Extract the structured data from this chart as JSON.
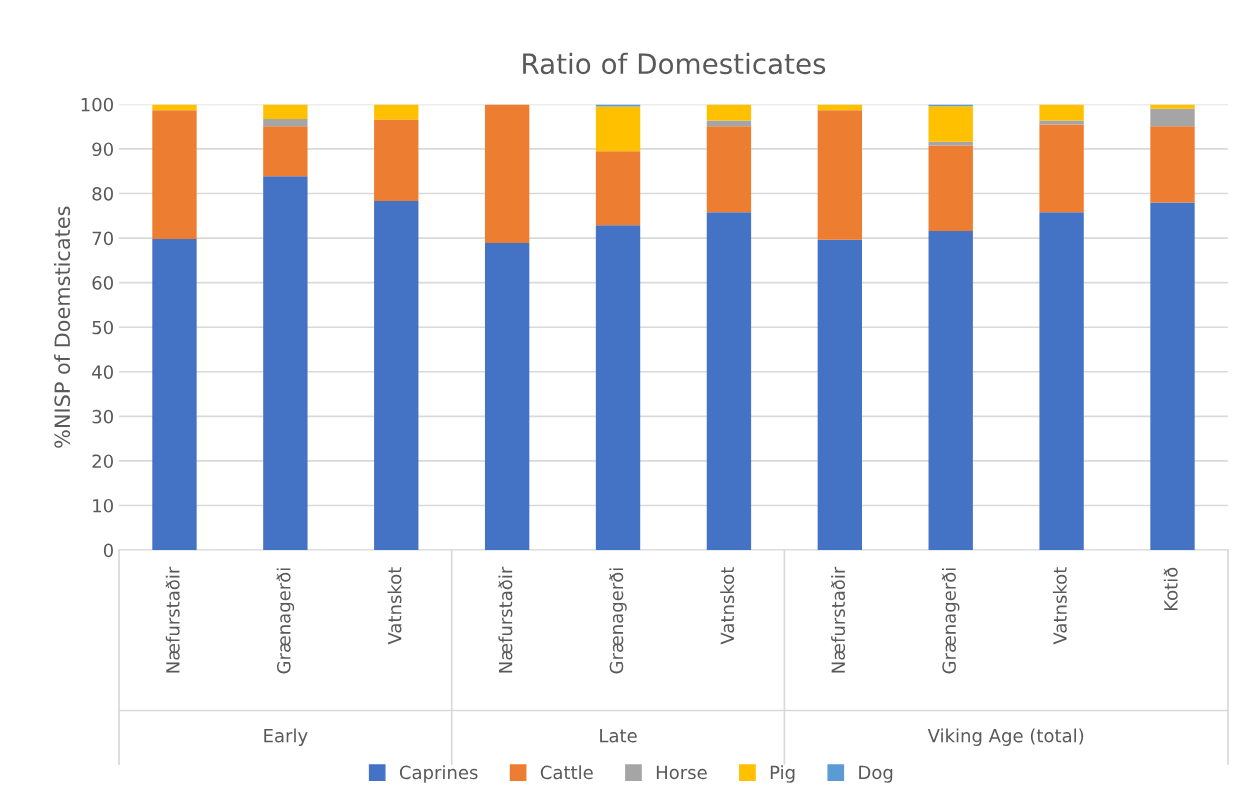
{
  "chart_data": {
    "type": "bar",
    "stacked": true,
    "title": "Ratio of Domesticates",
    "ylabel": "%NISP of Doemsticates",
    "categories": [
      "Næfurstaðir",
      "Grænagerði",
      "Vatnskot",
      "Næfurstaðir",
      "Grænagerði",
      "Vatnskot",
      "Næfurstaðir",
      "Grænagerði",
      "Vatnskot",
      "Kotið"
    ],
    "series": [
      {
        "name": "Caprines",
        "color": "#4472c4",
        "values": [
          69.8,
          83.9,
          78.3,
          68.9,
          72.9,
          75.8,
          69.6,
          71.6,
          75.8,
          78.0
        ]
      },
      {
        "name": "Cattle",
        "color": "#ed7d31",
        "values": [
          28.9,
          11.2,
          18.3,
          31.1,
          16.6,
          19.3,
          29.1,
          19.2,
          19.7,
          17.1
        ]
      },
      {
        "name": "Horse",
        "color": "#a5a5a5",
        "values": [
          0,
          1.6,
          0,
          0,
          0,
          1.3,
          0,
          0.8,
          0.9,
          3.9
        ]
      },
      {
        "name": "Pig",
        "color": "#ffc000",
        "values": [
          1.3,
          3.3,
          3.4,
          0,
          10.0,
          3.6,
          1.3,
          8.0,
          3.6,
          1.0
        ]
      },
      {
        "name": "Dog",
        "color": "#5b9bd5",
        "values": [
          0,
          0,
          0,
          0,
          0.5,
          0,
          0,
          0.4,
          0,
          0
        ]
      }
    ],
    "annotations": [
      "Early",
      "Late",
      "Viking Age (total)"
    ],
    "ylim": [
      0,
      100
    ],
    "yticks": [
      0,
      10,
      20,
      30,
      40,
      50,
      60,
      70,
      80,
      90,
      100
    ],
    "grid": "y",
    "legend": "bottom"
  }
}
